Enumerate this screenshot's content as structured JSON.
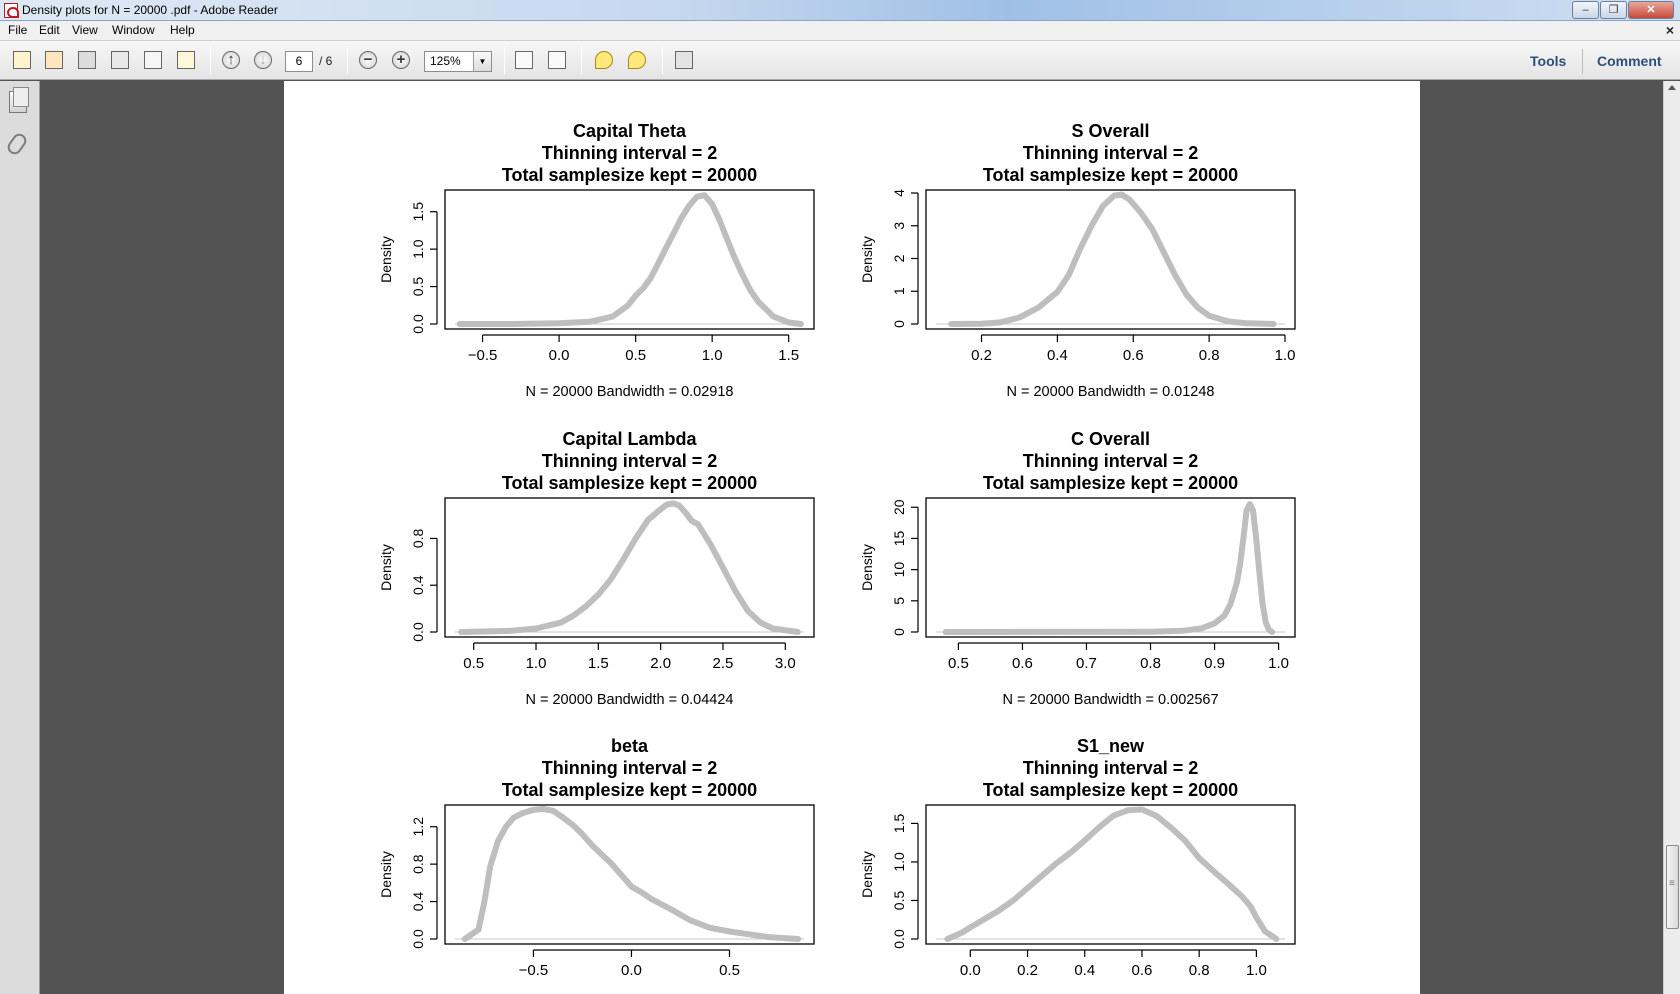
{
  "window": {
    "title": "Density plots for N = 20000 .pdf - Adobe Reader"
  },
  "menu": [
    "File",
    "Edit",
    "View",
    "Window",
    "Help"
  ],
  "toolbar": {
    "page_current": "6",
    "page_total": "/ 6",
    "zoom": "125%",
    "tools_label": "Tools",
    "comment_label": "Comment"
  },
  "icons": {
    "create": "create-pdf-icon",
    "combine": "combine-icon",
    "save": "save-icon",
    "print": "print-icon",
    "email": "email-icon",
    "sign": "sign-icon",
    "prev": "previous-page-icon",
    "next": "next-page-icon",
    "zoom_out": "zoom-out-icon",
    "zoom_in": "zoom-in-icon",
    "fit_page": "fit-page-icon",
    "fit_width": "fit-width-icon",
    "comment": "sticky-note-icon",
    "highlight": "highlight-icon",
    "fullscreen": "fullscreen-icon",
    "pages_panel": "pages-panel-icon",
    "attachments_panel": "attachments-icon"
  },
  "chart_data": [
    {
      "type": "line",
      "title": [
        "Capital Theta",
        "Thinning interval =  2",
        "Total samplesize kept =  20000"
      ],
      "subtitle": "N = 20000   Bandwidth = 0.02918",
      "ylabel": "Density",
      "xlim": [
        -0.68,
        1.6
      ],
      "ylim": [
        0,
        1.75
      ],
      "xticks": [
        -0.5,
        0.0,
        0.5,
        1.0,
        1.5
      ],
      "xtick_labels": [
        "−0.5",
        "0.0",
        "0.5",
        "1.0",
        "1.5"
      ],
      "yticks": [
        0.0,
        0.5,
        1.0,
        1.5
      ],
      "ytick_labels": [
        "0.0",
        "0.5",
        "1.0",
        "1.5"
      ],
      "series": [
        {
          "x": [
            -0.65,
            -0.3,
            0,
            0.2,
            0.35,
            0.45,
            0.5,
            0.55,
            0.6,
            0.65,
            0.7,
            0.75,
            0.8,
            0.85,
            0.9,
            0.95,
            1.0,
            1.05,
            1.1,
            1.15,
            1.2,
            1.25,
            1.3,
            1.4,
            1.5,
            1.58
          ],
          "y": [
            0,
            0,
            0.01,
            0.03,
            0.1,
            0.25,
            0.38,
            0.48,
            0.62,
            0.82,
            1.02,
            1.22,
            1.42,
            1.58,
            1.7,
            1.72,
            1.6,
            1.38,
            1.12,
            0.87,
            0.65,
            0.45,
            0.3,
            0.1,
            0.02,
            0
          ]
        }
      ]
    },
    {
      "type": "line",
      "title": [
        "S Overall",
        "Thinning interval =  2",
        "Total samplesize kept =  20000"
      ],
      "subtitle": "N = 20000   Bandwidth = 0.01248",
      "ylabel": "Density",
      "xlim": [
        0.08,
        1.0
      ],
      "ylim": [
        0,
        4.0
      ],
      "xticks": [
        0.2,
        0.4,
        0.6,
        0.8,
        1.0
      ],
      "xtick_labels": [
        "0.2",
        "0.4",
        "0.6",
        "0.8",
        "1.0"
      ],
      "yticks": [
        0,
        1,
        2,
        3,
        4
      ],
      "ytick_labels": [
        "0",
        "1",
        "2",
        "3",
        "4"
      ],
      "series": [
        {
          "x": [
            0.12,
            0.2,
            0.25,
            0.3,
            0.35,
            0.4,
            0.43,
            0.46,
            0.49,
            0.52,
            0.55,
            0.57,
            0.59,
            0.62,
            0.65,
            0.68,
            0.71,
            0.74,
            0.77,
            0.8,
            0.85,
            0.9,
            0.97
          ],
          "y": [
            0,
            0.01,
            0.05,
            0.2,
            0.5,
            0.98,
            1.5,
            2.3,
            3.0,
            3.6,
            3.92,
            3.95,
            3.8,
            3.4,
            2.9,
            2.2,
            1.5,
            0.9,
            0.5,
            0.25,
            0.08,
            0.02,
            0
          ]
        }
      ]
    },
    {
      "type": "line",
      "title": [
        "Capital Lambda",
        "Thinning interval =  2",
        "Total samplesize kept =  20000"
      ],
      "subtitle": "N = 20000   Bandwidth = 0.04424",
      "ylabel": "Density",
      "xlim": [
        0.35,
        3.15
      ],
      "ylim": [
        0,
        1.12
      ],
      "xticks": [
        0.5,
        1.0,
        1.5,
        2.0,
        2.5,
        3.0
      ],
      "xtick_labels": [
        "0.5",
        "1.0",
        "1.5",
        "2.0",
        "2.5",
        "3.0"
      ],
      "yticks": [
        0.0,
        0.4,
        0.8
      ],
      "ytick_labels": [
        "0.0",
        "0.4",
        "0.8"
      ],
      "series": [
        {
          "x": [
            0.4,
            0.8,
            1.0,
            1.2,
            1.3,
            1.4,
            1.5,
            1.6,
            1.7,
            1.8,
            1.9,
            2.0,
            2.05,
            2.1,
            2.15,
            2.2,
            2.25,
            2.3,
            2.4,
            2.5,
            2.6,
            2.7,
            2.8,
            2.9,
            3.1
          ],
          "y": [
            0,
            0.01,
            0.03,
            0.08,
            0.14,
            0.22,
            0.32,
            0.45,
            0.62,
            0.8,
            0.96,
            1.05,
            1.09,
            1.1,
            1.08,
            1.02,
            0.95,
            0.92,
            0.75,
            0.55,
            0.35,
            0.18,
            0.08,
            0.03,
            0
          ]
        }
      ]
    },
    {
      "type": "line",
      "title": [
        "C Overall",
        "Thinning interval =  2",
        "Total samplesize kept =  20000"
      ],
      "subtitle": "N = 20000   Bandwidth = 0.002567",
      "ylabel": "Density",
      "xlim": [
        0.465,
        1.01
      ],
      "ylim": [
        0,
        21
      ],
      "xticks": [
        0.5,
        0.6,
        0.7,
        0.8,
        0.9,
        1.0
      ],
      "xtick_labels": [
        "0.5",
        "0.6",
        "0.7",
        "0.8",
        "0.9",
        "1.0"
      ],
      "yticks": [
        0,
        5,
        10,
        15,
        20
      ],
      "ytick_labels": [
        "0",
        "5",
        "10",
        "15",
        "20"
      ],
      "series": [
        {
          "x": [
            0.48,
            0.8,
            0.85,
            0.88,
            0.9,
            0.915,
            0.925,
            0.935,
            0.94,
            0.945,
            0.95,
            0.955,
            0.96,
            0.965,
            0.97,
            0.975,
            0.98,
            0.985,
            0.99
          ],
          "y": [
            0,
            0.05,
            0.2,
            0.6,
            1.4,
            2.6,
            4.5,
            8,
            11,
            15,
            19.5,
            20.5,
            19.5,
            15,
            9.5,
            4.5,
            1.5,
            0.3,
            0
          ]
        }
      ]
    },
    {
      "type": "line",
      "title": [
        "beta",
        "Thinning interval =  2",
        "Total samplesize kept =  20000"
      ],
      "subtitle": "",
      "ylabel": "Density",
      "xlim": [
        -0.9,
        0.88
      ],
      "ylim": [
        0,
        1.4
      ],
      "xticks": [
        -0.5,
        0.0,
        0.5
      ],
      "xtick_labels": [
        "−0.5",
        "0.0",
        "0.5"
      ],
      "yticks": [
        0.0,
        0.4,
        0.8,
        1.2
      ],
      "ytick_labels": [
        "0.0",
        "0.4",
        "0.8",
        "1.2"
      ],
      "series": [
        {
          "x": [
            -0.85,
            -0.78,
            -0.75,
            -0.72,
            -0.68,
            -0.64,
            -0.6,
            -0.55,
            -0.5,
            -0.45,
            -0.4,
            -0.35,
            -0.3,
            -0.25,
            -0.2,
            -0.15,
            -0.1,
            -0.05,
            0,
            0.05,
            0.1,
            0.2,
            0.3,
            0.4,
            0.5,
            0.6,
            0.7,
            0.85
          ],
          "y": [
            0,
            0.1,
            0.4,
            0.78,
            1.05,
            1.2,
            1.3,
            1.35,
            1.38,
            1.39,
            1.37,
            1.3,
            1.22,
            1.12,
            1.0,
            0.9,
            0.8,
            0.68,
            0.56,
            0.5,
            0.43,
            0.32,
            0.2,
            0.12,
            0.08,
            0.05,
            0.02,
            0
          ]
        }
      ]
    },
    {
      "type": "line",
      "title": [
        "S1_new",
        "Thinning interval =  2",
        "Total samplesize kept =  20000"
      ],
      "subtitle": "",
      "ylabel": "Density",
      "xlim": [
        -0.12,
        1.1
      ],
      "ylim": [
        0,
        1.7
      ],
      "xticks": [
        0.0,
        0.2,
        0.4,
        0.6,
        0.8,
        1.0
      ],
      "xtick_labels": [
        "0.0",
        "0.2",
        "0.4",
        "0.6",
        "0.8",
        "1.0"
      ],
      "yticks": [
        0.0,
        0.5,
        1.0,
        1.5
      ],
      "ytick_labels": [
        "0.0",
        "0.5",
        "1.0",
        "1.5"
      ],
      "series": [
        {
          "x": [
            -0.08,
            -0.03,
            0.0,
            0.05,
            0.1,
            0.15,
            0.2,
            0.25,
            0.3,
            0.35,
            0.4,
            0.45,
            0.5,
            0.55,
            0.6,
            0.65,
            0.7,
            0.75,
            0.8,
            0.85,
            0.9,
            0.95,
            0.98,
            1.0,
            1.03,
            1.07
          ],
          "y": [
            0,
            0.08,
            0.15,
            0.26,
            0.37,
            0.5,
            0.66,
            0.82,
            0.98,
            1.12,
            1.28,
            1.45,
            1.6,
            1.67,
            1.68,
            1.6,
            1.45,
            1.28,
            1.05,
            0.88,
            0.72,
            0.55,
            0.42,
            0.28,
            0.1,
            0
          ]
        }
      ]
    }
  ]
}
